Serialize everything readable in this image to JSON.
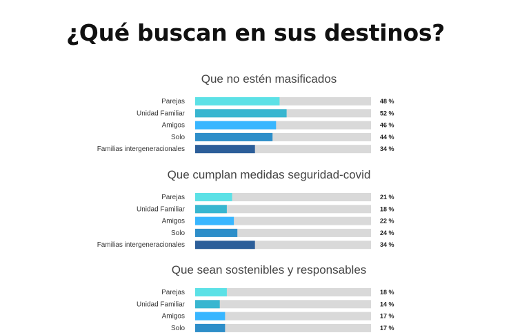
{
  "title": "¿Qué buscan en sus destinos?",
  "colors": {
    "track": "#d9d9d9",
    "parejas": "#5ce1e6",
    "unidad_familiar": "#38b6d0",
    "amigos": "#38b6ff",
    "solo": "#2d8ec9",
    "familias_intergeneracionales": "#2c5e99"
  },
  "chart_data": [
    {
      "type": "bar",
      "orientation": "horizontal",
      "title": "Que no estén masificados",
      "categories": [
        "Parejas",
        "Unidad Familiar",
        "Amigos",
        "Solo",
        "Familias intergeneracionales"
      ],
      "values": [
        48,
        52,
        46,
        44,
        34
      ],
      "value_labels": [
        "48 %",
        "52 %",
        "46 %",
        "44 %",
        "34 %"
      ],
      "xlim": [
        0,
        100
      ]
    },
    {
      "type": "bar",
      "orientation": "horizontal",
      "title": "Que cumplan medidas seguridad-covid",
      "categories": [
        "Parejas",
        "Unidad Familiar",
        "Amigos",
        "Solo",
        "Familias intergeneracionales"
      ],
      "values": [
        21,
        18,
        22,
        24,
        34
      ],
      "value_labels": [
        "21 %",
        "18 %",
        "22 %",
        "24 %",
        "34 %"
      ],
      "xlim": [
        0,
        100
      ]
    },
    {
      "type": "bar",
      "orientation": "horizontal",
      "title": "Que sean sostenibles y responsables",
      "categories": [
        "Parejas",
        "Unidad Familiar",
        "Amigos",
        "Solo"
      ],
      "values": [
        18,
        14,
        17,
        17
      ],
      "value_labels": [
        "18 %",
        "14 %",
        "17 %",
        "17 %"
      ],
      "xlim": [
        0,
        100
      ]
    }
  ]
}
